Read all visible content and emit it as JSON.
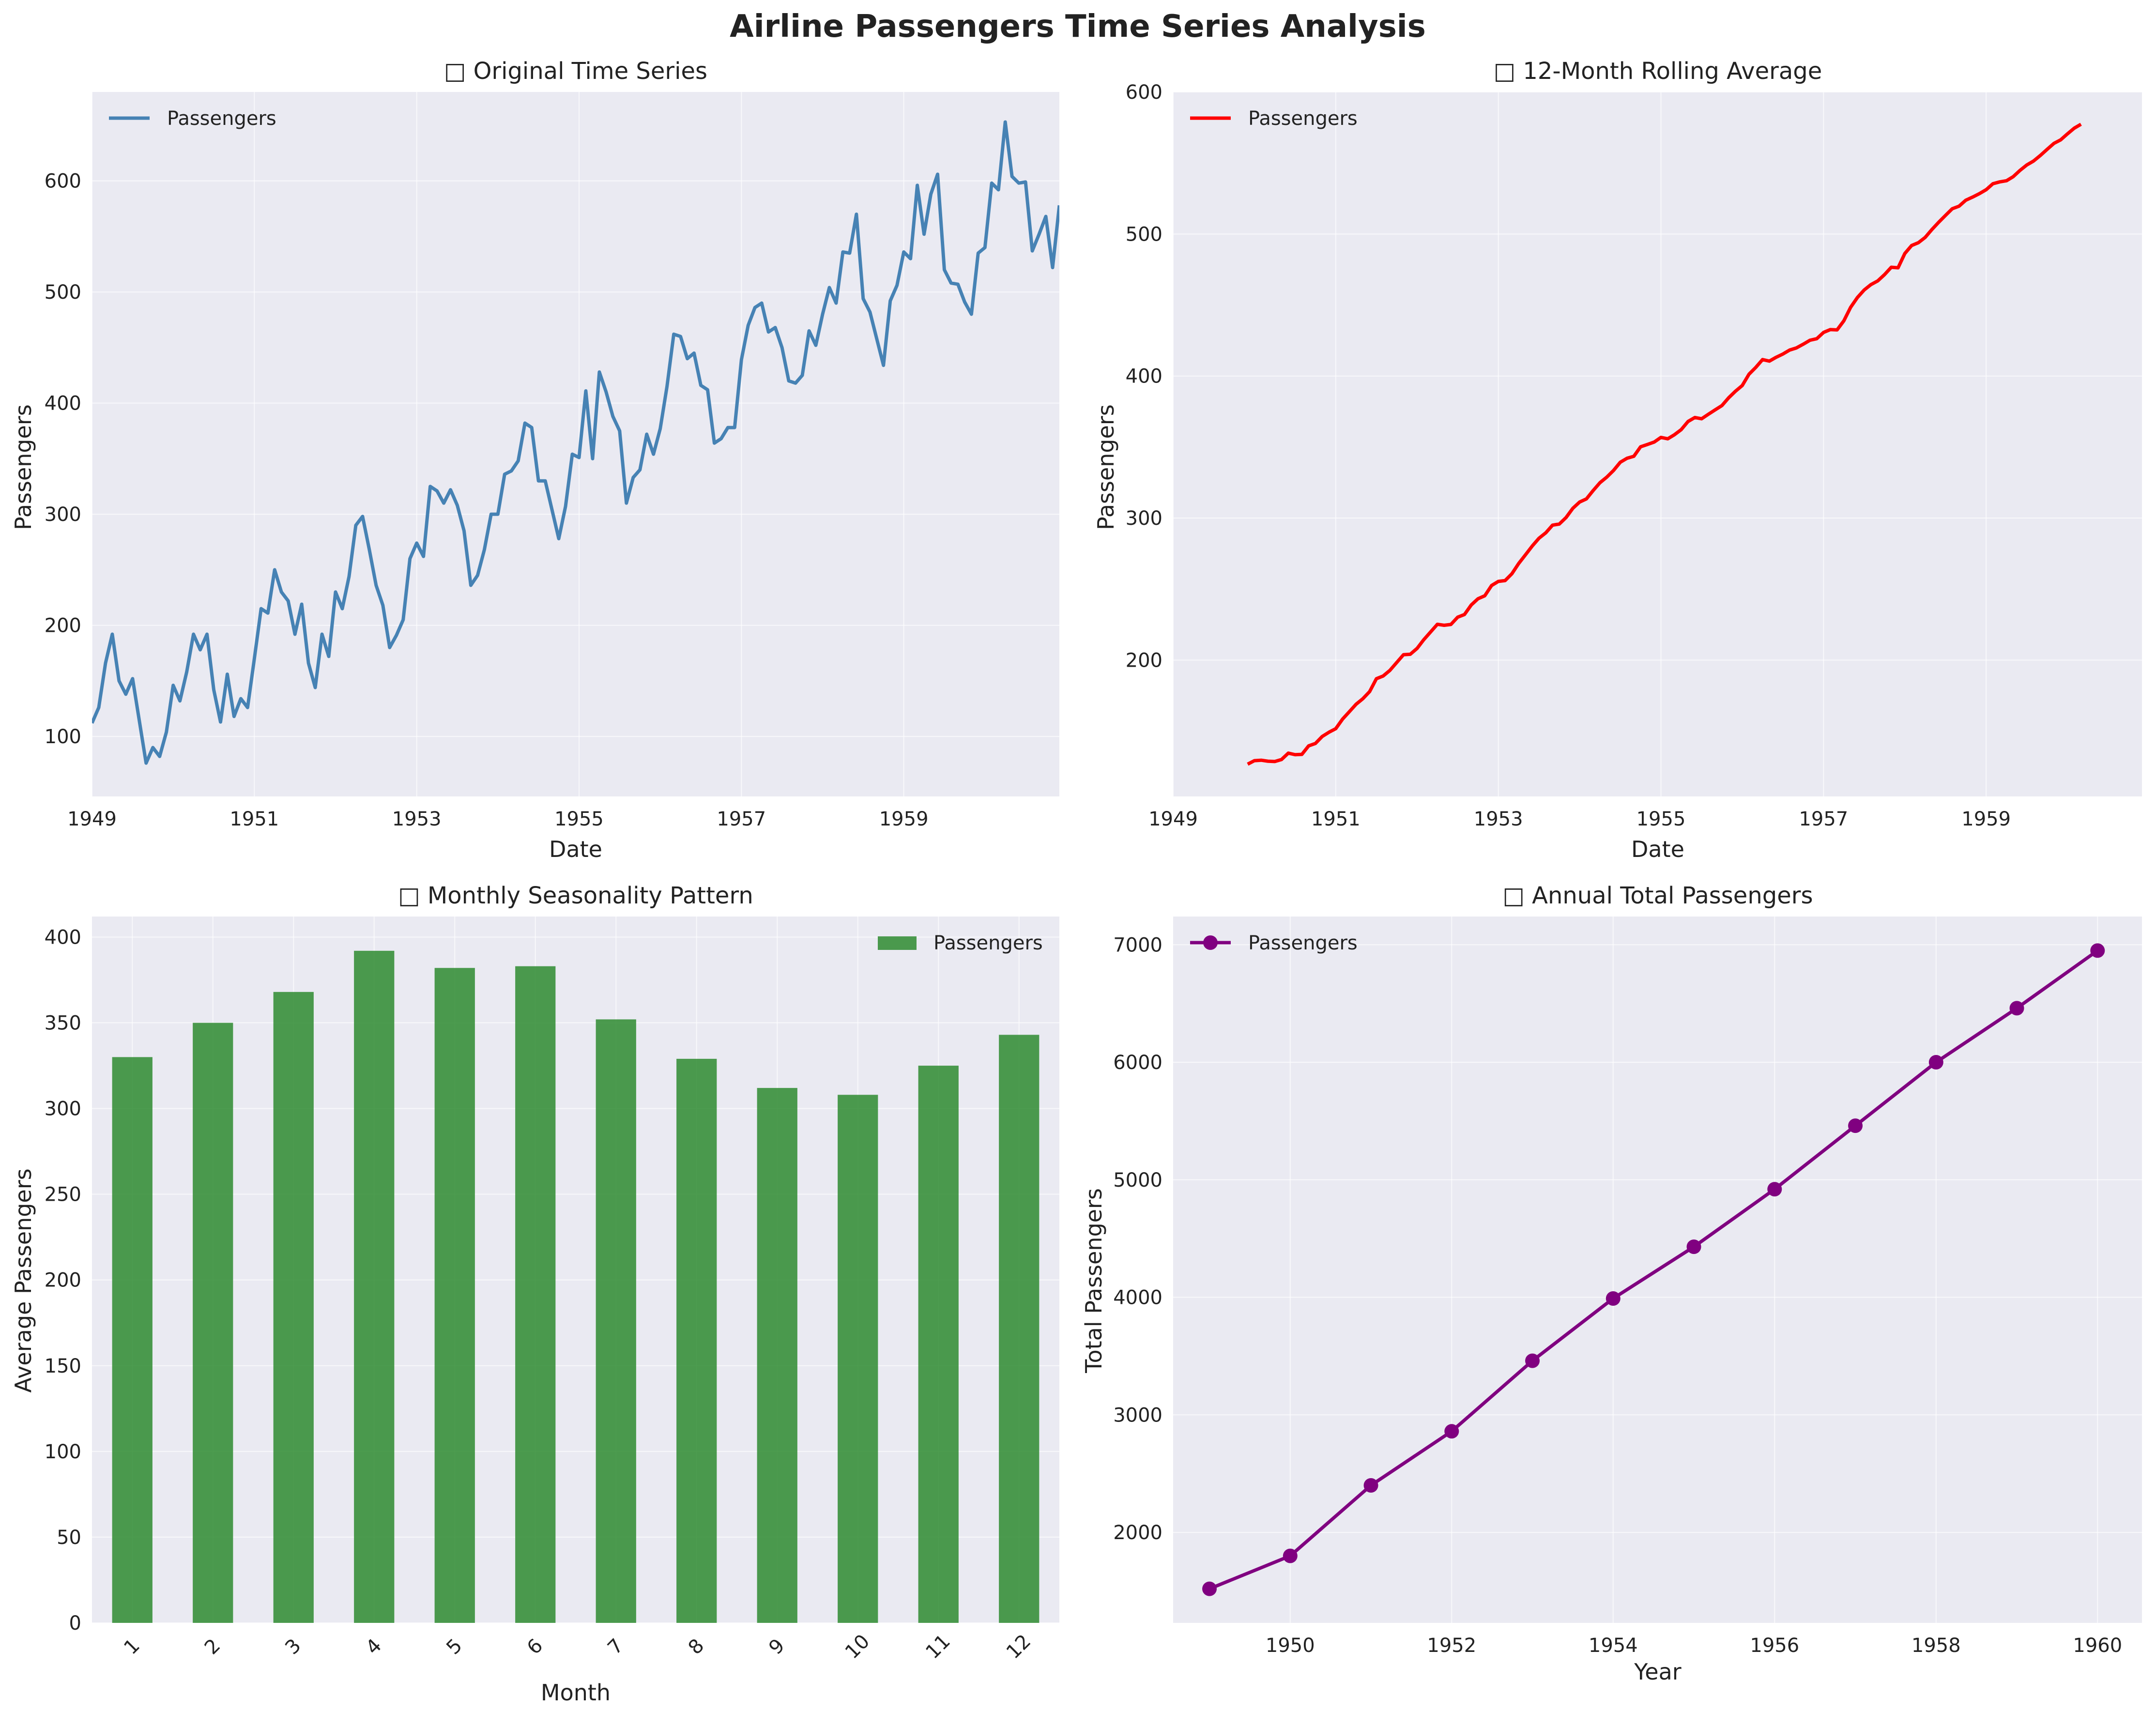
{
  "figure": {
    "title": "Airline Passengers Time Series Analysis",
    "colors": {
      "original": "#4682b4",
      "rolling": "#ff0000",
      "bars": "#2e8b30",
      "annual": "#800080"
    }
  },
  "chart_data": [
    {
      "type": "line",
      "title": "□ Original Time Series",
      "xlabel": "Date",
      "ylabel": "Passengers",
      "legend": [
        "Passengers"
      ],
      "legend_loc": "top-left",
      "x_start": 1949.0,
      "x_step": 0.0833333,
      "xlim": [
        1949.0,
        1960.9167
      ],
      "ylim": [
        46,
        680
      ],
      "xticks": [
        1949,
        1951,
        1953,
        1955,
        1957,
        1959
      ],
      "yticks": [
        100,
        200,
        300,
        400,
        500,
        600
      ],
      "values": [
        112,
        126,
        166,
        192,
        150,
        138,
        152,
        114,
        76,
        90,
        82,
        104,
        146,
        132,
        158,
        192,
        178,
        192,
        142,
        113,
        156,
        118,
        134,
        126,
        170,
        215,
        211,
        250,
        230,
        222,
        192,
        219,
        166,
        144,
        192,
        172,
        230,
        215,
        244,
        290,
        298,
        268,
        236,
        218,
        180,
        191,
        205,
        260,
        274,
        262,
        325,
        321,
        310,
        322,
        308,
        285,
        236,
        245,
        268,
        300,
        300,
        336,
        339,
        348,
        382,
        378,
        330,
        330,
        304,
        278,
        307,
        354,
        351,
        411,
        350,
        428,
        410,
        388,
        375,
        310,
        333,
        340,
        372,
        354,
        377,
        415,
        462,
        460,
        440,
        445,
        416,
        412,
        364,
        368,
        378,
        378,
        439,
        470,
        486,
        490,
        464,
        468,
        450,
        420,
        418,
        425,
        465,
        452,
        480,
        504,
        490,
        536,
        535,
        570,
        494,
        482,
        458,
        434,
        492,
        506,
        536,
        530,
        596,
        552,
        588,
        606,
        520,
        508,
        507,
        491,
        480,
        535,
        540,
        598,
        592,
        653,
        604,
        598,
        599,
        537,
        552,
        568,
        522,
        578
      ]
    },
    {
      "type": "line",
      "title": "□ 12-Month Rolling Average",
      "xlabel": "Date",
      "ylabel": "Passengers",
      "legend": [
        "Passengers"
      ],
      "legend_loc": "top-left",
      "x_start": 1949.9167,
      "x_step": 0.0833333,
      "xlim": [
        1949.0,
        1960.9167
      ],
      "ylim": [
        104,
        600
      ],
      "xticks": [
        1949,
        1951,
        1953,
        1955,
        1957,
        1959
      ],
      "yticks": [
        200,
        300,
        400,
        500,
        600
      ],
      "values": [
        126.7,
        129.2,
        129.5,
        128.8,
        128.6,
        130.0,
        134.5,
        133.4,
        133.6,
        139.6,
        141.3,
        146.2,
        149.2,
        151.7,
        158.4,
        163.6,
        168.9,
        172.8,
        177.8,
        186.9,
        188.8,
        192.8,
        198.3,
        203.8,
        204.1,
        208.2,
        214.4,
        219.8,
        225.2,
        224.5,
        225.1,
        230.2,
        232.1,
        238.8,
        243.2,
        245.3,
        252.5,
        255.4,
        256.0,
        260.8,
        268.0,
        274.1,
        280.3,
        285.8,
        289.6,
        295.0,
        295.8,
        300.4,
        306.9,
        311.3,
        313.5,
        319.4,
        324.9,
        328.8,
        333.5,
        339.3,
        342.1,
        343.5,
        350.2,
        351.8,
        353.5,
        356.8,
        355.8,
        358.7,
        362.3,
        368.0,
        370.8,
        369.9,
        373.1,
        376.2,
        379.2,
        384.7,
        389.3,
        393.3,
        401.3,
        406.1,
        411.6,
        410.5,
        413.2,
        415.5,
        418.3,
        419.8,
        422.4,
        425.2,
        426.3,
        430.7,
        432.7,
        432.5,
        438.9,
        448.4,
        455.3,
        460.6,
        464.4,
        467.0,
        471.4,
        476.6,
        476.2,
        486.3,
        491.9,
        493.9,
        497.6,
        503.2,
        508.3,
        513.1,
        517.8,
        519.6,
        523.8,
        526.0,
        528.4,
        531.2,
        535.4,
        536.7,
        537.5,
        540.4,
        544.8,
        548.6,
        551.4,
        555.3,
        559.6,
        563.8,
        566.3,
        570.5,
        574.5,
        577.3
      ]
    },
    {
      "type": "bar",
      "title": "□ Monthly Seasonality Pattern",
      "xlabel": "Month",
      "ylabel": "Average Passengers",
      "legend": [
        "Passengers"
      ],
      "legend_loc": "top-right",
      "categories": [
        "1",
        "2",
        "3",
        "4",
        "5",
        "6",
        "7",
        "8",
        "9",
        "10",
        "11",
        "12"
      ],
      "values": [
        330,
        350,
        368,
        392,
        382,
        383,
        352,
        329,
        312,
        308,
        325,
        343
      ],
      "ylim": [
        0,
        412
      ],
      "yticks": [
        0,
        50,
        100,
        150,
        200,
        250,
        300,
        350,
        400
      ]
    },
    {
      "type": "line",
      "title": "□ Annual Total Passengers",
      "xlabel": "Year",
      "ylabel": "Total Passengers",
      "legend": [
        "Passengers"
      ],
      "legend_loc": "top-left",
      "x": [
        1949,
        1950,
        1951,
        1952,
        1953,
        1954,
        1955,
        1956,
        1957,
        1958,
        1959,
        1960
      ],
      "values": [
        1520,
        1800,
        2400,
        2860,
        3460,
        3990,
        4430,
        4920,
        5460,
        6000,
        6460,
        6950
      ],
      "xlim": [
        1948.55,
        1960.55
      ],
      "ylim": [
        1230,
        7240
      ],
      "xticks": [
        1950,
        1952,
        1954,
        1956,
        1958,
        1960
      ],
      "yticks": [
        2000,
        3000,
        4000,
        5000,
        6000,
        7000
      ]
    }
  ]
}
